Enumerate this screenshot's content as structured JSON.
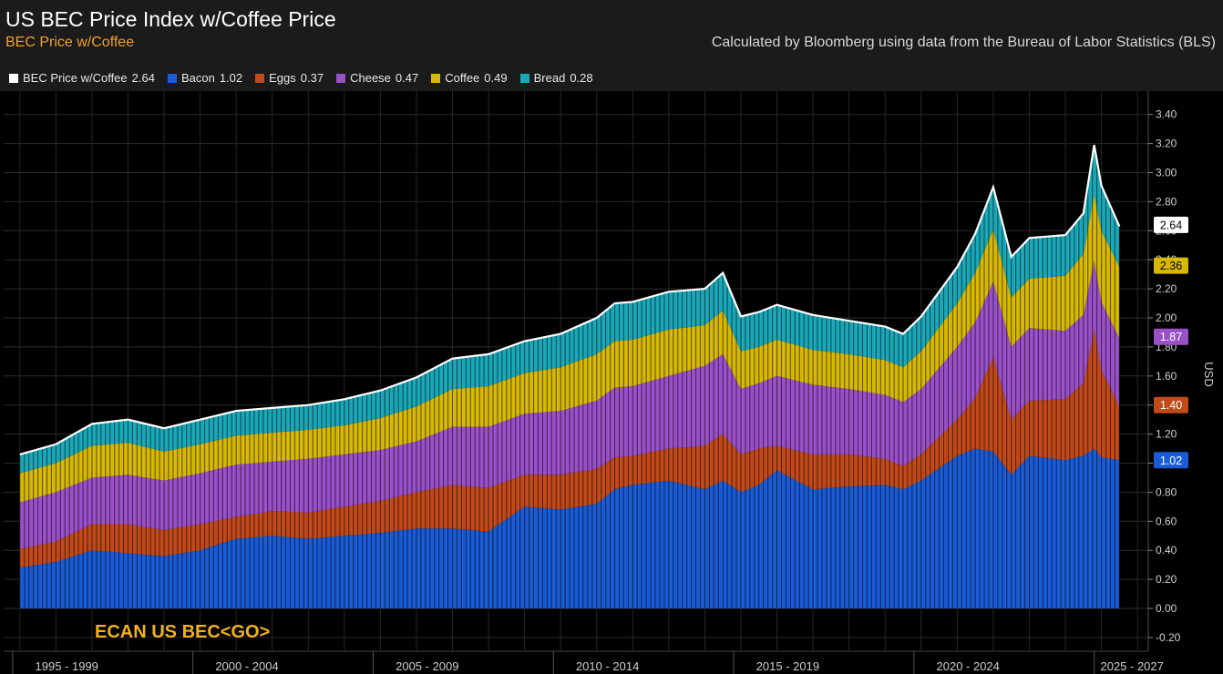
{
  "header": {
    "title": "US BEC Price Index w/Coffee Price",
    "subtitle": "BEC Price w/Coffee",
    "source": "Calculated by Bloomberg using data from the Bureau of Labor Statistics (BLS)"
  },
  "legend": [
    {
      "label": "BEC Price w/Coffee",
      "value": "2.64",
      "color": "#ffffff"
    },
    {
      "label": "Bacon",
      "value": "1.02",
      "color": "#1a5bd6"
    },
    {
      "label": "Eggs",
      "value": "0.37",
      "color": "#c24a1a"
    },
    {
      "label": "Cheese",
      "value": "0.47",
      "color": "#9a50c8"
    },
    {
      "label": "Coffee",
      "value": "0.49",
      "color": "#d8b800"
    },
    {
      "label": "Bread",
      "value": "0.28",
      "color": "#1aa8b8"
    }
  ],
  "ticker": "ECAN US BEC<GO>",
  "chart_data": {
    "type": "area",
    "stacked": true,
    "ylabel": "USD",
    "ylim": [
      -0.28,
      3.5
    ],
    "yticks": [
      "3.40",
      "3.20",
      "3.00",
      "2.80",
      "2.60",
      "2.40",
      "2.20",
      "2.00",
      "1.80",
      "1.60",
      "1.40",
      "1.20",
      "1.00",
      "0.80",
      "0.60",
      "0.40",
      "0.20",
      "0.00",
      "-0.20"
    ],
    "xticks": [
      "1995 - 1999",
      "2000 - 2004",
      "2005 - 2009",
      "2010 - 2014",
      "2015 - 2019",
      "2020 - 2024",
      "2025 - 2027"
    ],
    "grid": true,
    "x": [
      1995.0,
      1996.0,
      1997.0,
      1998.0,
      1999.0,
      2000.0,
      2001.0,
      2002.0,
      2003.0,
      2004.0,
      2005.0,
      2006.0,
      2007.0,
      2008.0,
      2009.0,
      2010.0,
      2011.0,
      2011.5,
      2012.0,
      2013.0,
      2014.0,
      2014.5,
      2015.0,
      2015.5,
      2016.0,
      2017.0,
      2018.0,
      2019.0,
      2019.5,
      2020.0,
      2021.0,
      2021.5,
      2022.0,
      2022.5,
      2023.0,
      2024.0,
      2024.5,
      2024.8,
      2025.0,
      2025.5
    ],
    "series": [
      {
        "name": "Bacon",
        "color": "#1a5bd6",
        "values": [
          0.28,
          0.32,
          0.4,
          0.38,
          0.36,
          0.4,
          0.48,
          0.5,
          0.48,
          0.5,
          0.52,
          0.55,
          0.55,
          0.53,
          0.7,
          0.68,
          0.72,
          0.82,
          0.85,
          0.88,
          0.82,
          0.88,
          0.8,
          0.85,
          0.95,
          0.82,
          0.84,
          0.85,
          0.82,
          0.88,
          1.05,
          1.1,
          1.08,
          0.92,
          1.05,
          1.02,
          1.05,
          1.1,
          1.04,
          1.02
        ]
      },
      {
        "name": "Eggs",
        "color": "#c24a1a",
        "values": [
          0.13,
          0.14,
          0.18,
          0.2,
          0.18,
          0.18,
          0.15,
          0.17,
          0.18,
          0.2,
          0.22,
          0.25,
          0.3,
          0.3,
          0.22,
          0.24,
          0.24,
          0.22,
          0.2,
          0.22,
          0.3,
          0.32,
          0.26,
          0.25,
          0.17,
          0.24,
          0.22,
          0.18,
          0.16,
          0.18,
          0.25,
          0.35,
          0.65,
          0.38,
          0.38,
          0.42,
          0.5,
          0.82,
          0.6,
          0.37
        ]
      },
      {
        "name": "Cheese",
        "color": "#9a50c8",
        "values": [
          0.32,
          0.34,
          0.32,
          0.34,
          0.34,
          0.35,
          0.36,
          0.34,
          0.37,
          0.36,
          0.35,
          0.35,
          0.4,
          0.42,
          0.42,
          0.44,
          0.47,
          0.48,
          0.48,
          0.5,
          0.55,
          0.55,
          0.45,
          0.45,
          0.48,
          0.48,
          0.45,
          0.44,
          0.44,
          0.45,
          0.5,
          0.52,
          0.52,
          0.5,
          0.5,
          0.47,
          0.47,
          0.47,
          0.47,
          0.47
        ]
      },
      {
        "name": "Coffee",
        "color": "#d8b800",
        "values": [
          0.2,
          0.2,
          0.22,
          0.22,
          0.2,
          0.2,
          0.2,
          0.2,
          0.2,
          0.2,
          0.22,
          0.24,
          0.26,
          0.28,
          0.28,
          0.3,
          0.32,
          0.32,
          0.32,
          0.32,
          0.28,
          0.3,
          0.26,
          0.25,
          0.25,
          0.24,
          0.24,
          0.24,
          0.24,
          0.26,
          0.3,
          0.34,
          0.36,
          0.34,
          0.34,
          0.38,
          0.42,
          0.46,
          0.49,
          0.49
        ]
      },
      {
        "name": "Bread",
        "color": "#1aa8b8",
        "values": [
          0.13,
          0.13,
          0.15,
          0.16,
          0.16,
          0.17,
          0.17,
          0.17,
          0.17,
          0.18,
          0.19,
          0.2,
          0.21,
          0.22,
          0.22,
          0.23,
          0.25,
          0.26,
          0.26,
          0.26,
          0.25,
          0.26,
          0.24,
          0.24,
          0.24,
          0.24,
          0.23,
          0.23,
          0.23,
          0.24,
          0.25,
          0.27,
          0.29,
          0.28,
          0.28,
          0.28,
          0.28,
          0.34,
          0.31,
          0.28
        ]
      }
    ],
    "total": {
      "name": "BEC Price w/Coffee",
      "color": "#ffffff"
    },
    "end_labels": [
      {
        "value": 2.64,
        "text": "2.64",
        "bg": "#ffffff",
        "fg": "#000000"
      },
      {
        "value": 2.36,
        "text": "2.36",
        "bg": "#d8b800",
        "fg": "#000000"
      },
      {
        "value": 1.87,
        "text": "1.87",
        "bg": "#9a50c8",
        "fg": "#ffffff"
      },
      {
        "value": 1.4,
        "text": "1.40",
        "bg": "#c24a1a",
        "fg": "#ffffff"
      },
      {
        "value": 1.02,
        "text": "1.02",
        "bg": "#1a5bd6",
        "fg": "#ffffff"
      }
    ]
  }
}
